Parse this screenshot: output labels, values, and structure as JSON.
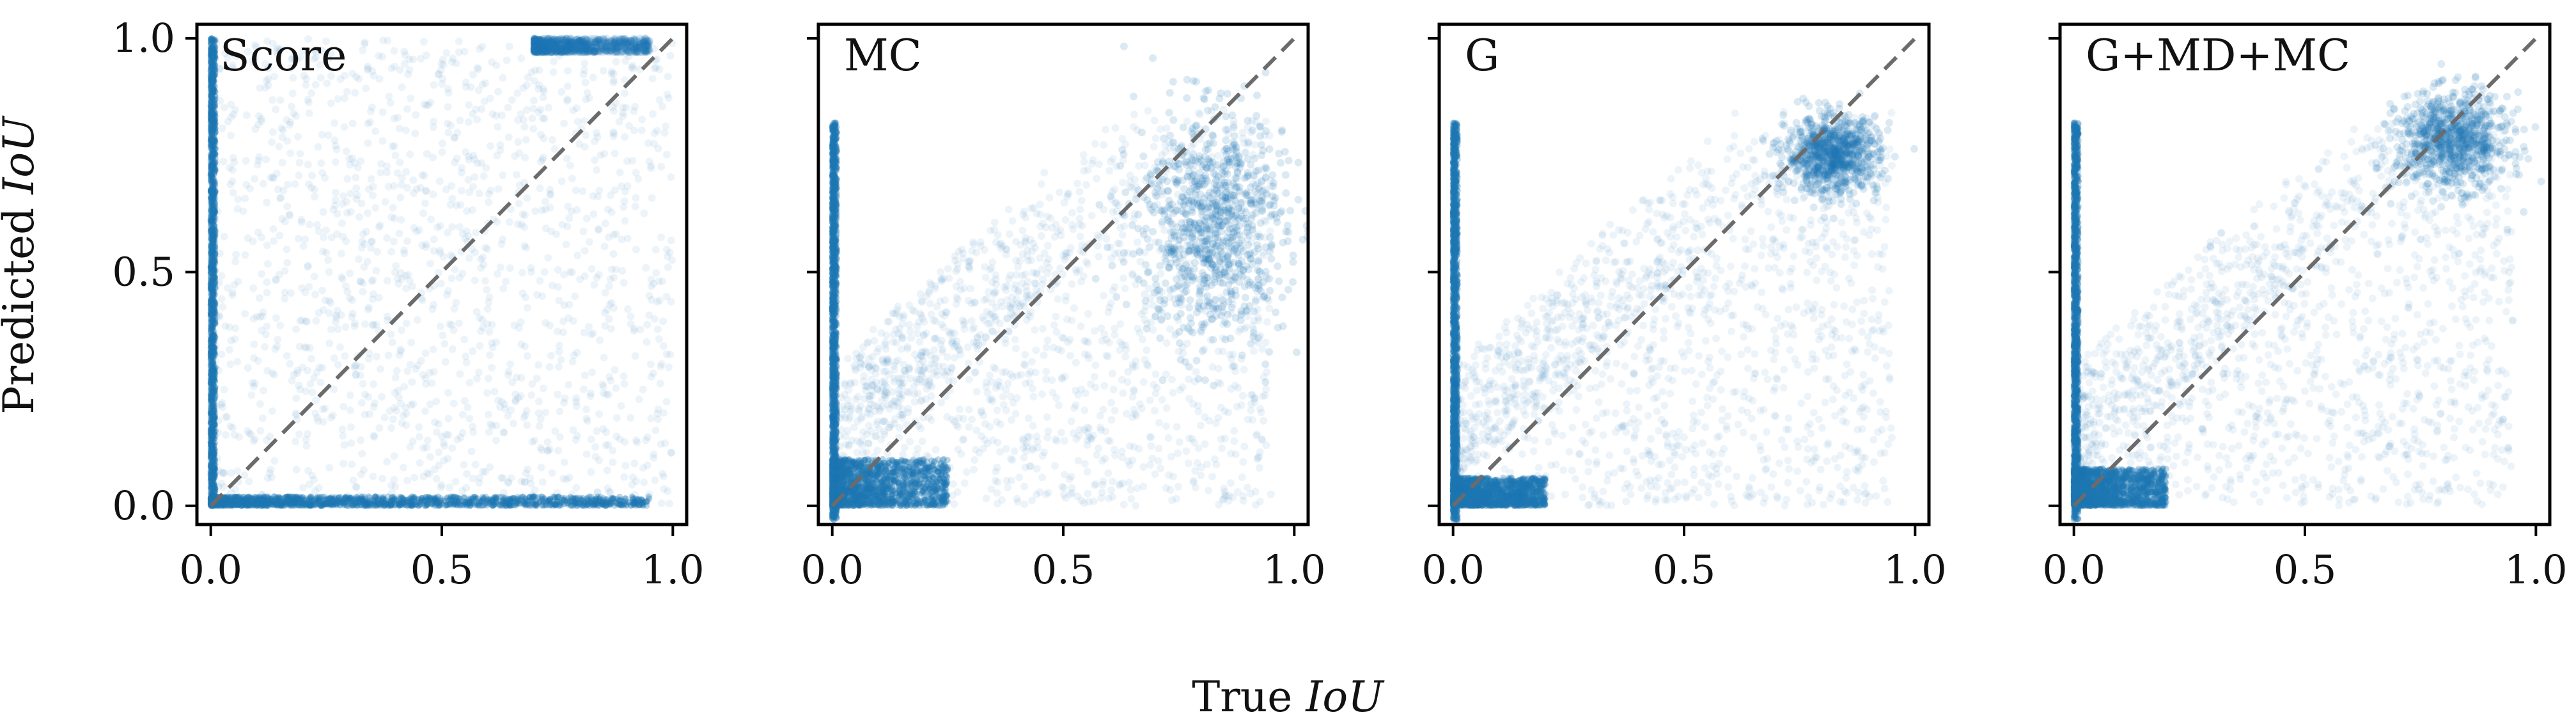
{
  "figure": {
    "xlabel_prefix": "True",
    "xlabel_var": "IoU",
    "ylabel_prefix": "Predicted",
    "ylabel_var": "IoU"
  },
  "colors": {
    "points": "#1f77b4",
    "diagonal": "#6b6b6b"
  },
  "chart_data": [
    {
      "type": "scatter",
      "title": "Score",
      "xlim": [
        0.0,
        1.0
      ],
      "ylim": [
        0.0,
        1.0
      ],
      "xticks": [
        "0.0",
        "0.5",
        "1.0"
      ],
      "yticks": [
        "0.0",
        "0.5",
        "1.0"
      ],
      "show_yticklabels": true,
      "reference_line": "y = x",
      "clusters": [
        {
          "x_range": [
            0.0,
            0.01
          ],
          "y_range": [
            0.0,
            1.0
          ],
          "density": "very high"
        },
        {
          "x_range": [
            0.0,
            0.95
          ],
          "y_range": [
            0.0,
            0.02
          ],
          "density": "very high"
        },
        {
          "x_range": [
            0.7,
            0.95
          ],
          "y_range": [
            0.97,
            1.0
          ],
          "density": "high"
        },
        {
          "x_range": [
            0.0,
            1.0
          ],
          "y_range": [
            0.0,
            1.0
          ],
          "density": "low"
        }
      ]
    },
    {
      "type": "scatter",
      "title": "MC",
      "xlim": [
        0.0,
        1.0
      ],
      "ylim": [
        0.0,
        1.0
      ],
      "xticks": [
        "0.0",
        "0.5",
        "1.0"
      ],
      "yticks": [
        "0.0",
        "0.5",
        "1.0"
      ],
      "show_yticklabels": false,
      "reference_line": "y = x",
      "clusters": [
        {
          "x_range": [
            0.0,
            0.01
          ],
          "y_range": [
            -0.03,
            0.82
          ],
          "density": "very high"
        },
        {
          "x_range": [
            0.0,
            0.25
          ],
          "y_range": [
            0.0,
            0.1
          ],
          "density": "very high"
        },
        {
          "center": [
            0.82,
            0.6
          ],
          "spread": [
            0.08,
            0.12
          ],
          "density": "high"
        },
        {
          "x_range": [
            0.0,
            0.95
          ],
          "y_range": [
            0.0,
            0.85
          ],
          "density": "low"
        }
      ]
    },
    {
      "type": "scatter",
      "title": "G",
      "xlim": [
        0.0,
        1.0
      ],
      "ylim": [
        0.0,
        1.0
      ],
      "xticks": [
        "0.0",
        "0.5",
        "1.0"
      ],
      "yticks": [
        "0.0",
        "0.5",
        "1.0"
      ],
      "show_yticklabels": false,
      "reference_line": "y = x",
      "clusters": [
        {
          "x_range": [
            0.0,
            0.01
          ],
          "y_range": [
            -0.03,
            0.82
          ],
          "density": "very high"
        },
        {
          "x_range": [
            0.0,
            0.2
          ],
          "y_range": [
            0.0,
            0.06
          ],
          "density": "very high"
        },
        {
          "center": [
            0.82,
            0.75
          ],
          "spread": [
            0.05,
            0.04
          ],
          "density": "high"
        },
        {
          "x_range": [
            0.0,
            0.95
          ],
          "y_range": [
            0.0,
            0.85
          ],
          "density": "low"
        }
      ]
    },
    {
      "type": "scatter",
      "title": "G+MD+MC",
      "xlim": [
        0.0,
        1.0
      ],
      "ylim": [
        0.0,
        1.0
      ],
      "xticks": [
        "0.0",
        "0.5",
        "1.0"
      ],
      "yticks": [
        "0.0",
        "0.5",
        "1.0"
      ],
      "show_yticklabels": false,
      "reference_line": "y = x",
      "clusters": [
        {
          "x_range": [
            0.0,
            0.01
          ],
          "y_range": [
            -0.03,
            0.82
          ],
          "density": "very high"
        },
        {
          "x_range": [
            0.0,
            0.2
          ],
          "y_range": [
            0.0,
            0.08
          ],
          "density": "very high"
        },
        {
          "center": [
            0.82,
            0.78
          ],
          "spread": [
            0.06,
            0.05
          ],
          "density": "high"
        },
        {
          "x_range": [
            0.0,
            0.95
          ],
          "y_range": [
            0.0,
            0.85
          ],
          "density": "low"
        }
      ]
    }
  ]
}
